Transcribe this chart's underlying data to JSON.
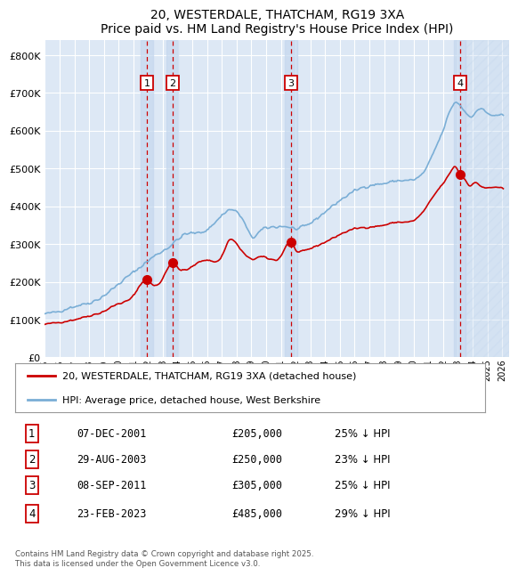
{
  "title": "20, WESTERDALE, THATCHAM, RG19 3XA",
  "subtitle": "Price paid vs. HM Land Registry's House Price Index (HPI)",
  "ytick_values": [
    0,
    100000,
    200000,
    300000,
    400000,
    500000,
    600000,
    700000,
    800000
  ],
  "ylim": [
    0,
    840000
  ],
  "xlim_start": 1995.0,
  "xlim_end": 2026.5,
  "background_color": "#ffffff",
  "plot_bg_color": "#dde8f5",
  "grid_color": "#ffffff",
  "sale_dates_year": [
    2001.92,
    2003.66,
    2011.69,
    2023.15
  ],
  "sale_labels": [
    "1",
    "2",
    "3",
    "4"
  ],
  "sale_prices": [
    205000,
    250000,
    305000,
    485000
  ],
  "sale_info": [
    {
      "label": "1",
      "date": "07-DEC-2001",
      "price": "£205,000",
      "pct": "25% ↓ HPI"
    },
    {
      "label": "2",
      "date": "29-AUG-2003",
      "price": "£250,000",
      "pct": "23% ↓ HPI"
    },
    {
      "label": "3",
      "date": "08-SEP-2011",
      "price": "£305,000",
      "pct": "25% ↓ HPI"
    },
    {
      "label": "4",
      "date": "23-FEB-2023",
      "price": "£485,000",
      "pct": "29% ↓ HPI"
    }
  ],
  "red_line_color": "#cc0000",
  "blue_line_color": "#7aaed6",
  "vline_color": "#cc0000",
  "shade_color": "#c5d8ef",
  "legend_label_red": "20, WESTERDALE, THATCHAM, RG19 3XA (detached house)",
  "legend_label_blue": "HPI: Average price, detached house, West Berkshire",
  "footnote": "Contains HM Land Registry data © Crown copyright and database right 2025.\nThis data is licensed under the Open Government Licence v3.0."
}
